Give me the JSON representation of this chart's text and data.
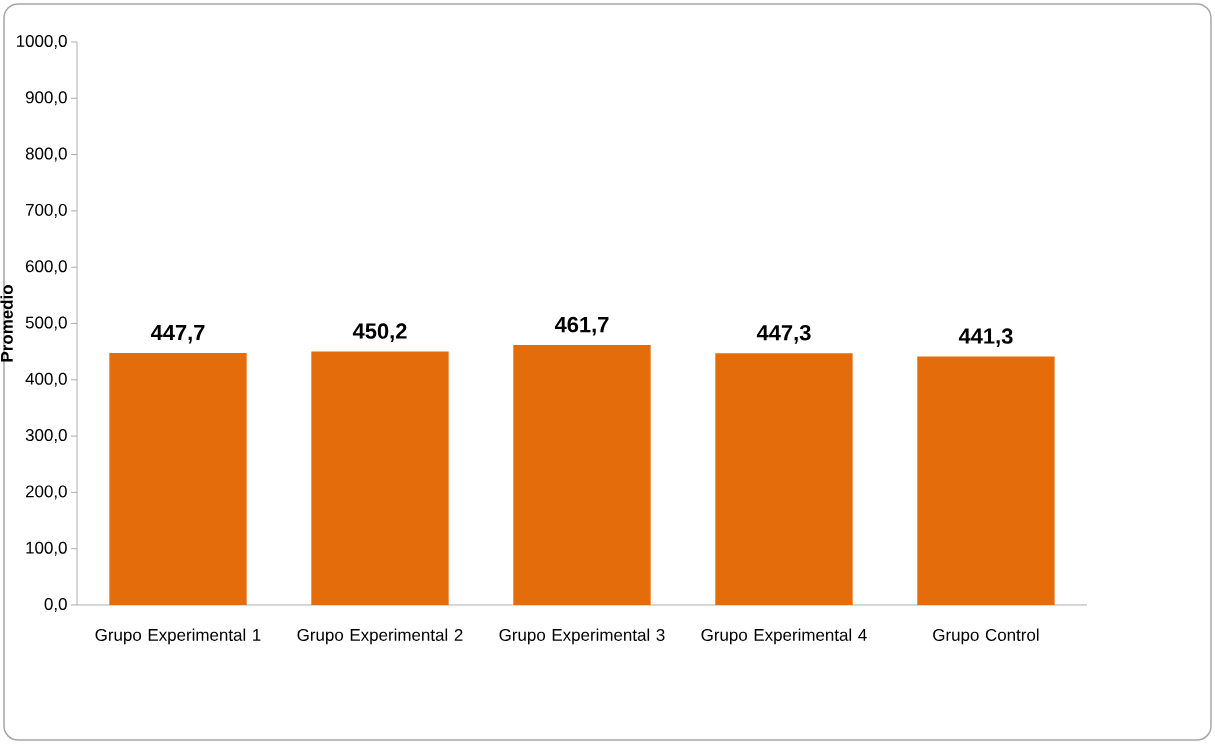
{
  "chart_data": {
    "type": "bar",
    "ylabel": "Promedio",
    "categories": [
      "Grupo Experimental 1",
      "Grupo Experimental 2",
      "Grupo Experimental 3",
      "Grupo Experimental 4",
      "Grupo Control"
    ],
    "values": [
      447.7,
      450.2,
      461.7,
      447.3,
      441.3
    ],
    "value_labels": [
      "447,7",
      "450,2",
      "461,7",
      "447,3",
      "441,3"
    ],
    "color": "#e46c0a",
    "ylim": [
      0,
      1000
    ],
    "yticks": [
      {
        "value": 0,
        "label": "0,0"
      },
      {
        "value": 100,
        "label": "100,0"
      },
      {
        "value": 200,
        "label": "200,0"
      },
      {
        "value": 300,
        "label": "300,0"
      },
      {
        "value": 400,
        "label": "400,0"
      },
      {
        "value": 500,
        "label": "500,0"
      },
      {
        "value": 600,
        "label": "600,0"
      },
      {
        "value": 700,
        "label": "700,0"
      },
      {
        "value": 800,
        "label": "800,0"
      },
      {
        "value": 900,
        "label": "900,0"
      },
      {
        "value": 1000,
        "label": "1000,0"
      }
    ]
  }
}
